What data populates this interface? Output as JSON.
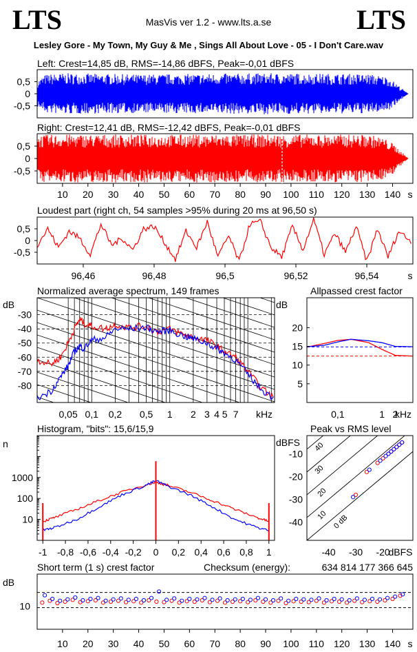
{
  "header": {
    "logo_left": "LTS",
    "logo_right": "LTS",
    "app_title": "MasVis ver 1.2 - www.lts.a.se",
    "track_title": "Lesley Gore - My Town, My Guy & Me , Sings All About Love - 05 - I Don't Care.wav"
  },
  "colors": {
    "left": "#0000ff",
    "right": "#ff0000",
    "axis": "#000000"
  },
  "chart_data": [
    {
      "type": "area",
      "title": "Left: Crest=14,85 dB, RMS=-14,86 dBFS, Peak=-0,01 dBFS",
      "yticks": [
        "0,5",
        "0",
        "-0,5"
      ],
      "ylim": [
        -1,
        1
      ],
      "xlim": [
        0,
        148
      ],
      "duration_s": 146,
      "series": [
        {
          "color": "blue",
          "envelope": [
            [
              0,
              0.55
            ],
            [
              3,
              0.8
            ],
            [
              10,
              0.85
            ],
            [
              40,
              0.8
            ],
            [
              90,
              0.85
            ],
            [
              130,
              0.82
            ],
            [
              138,
              0.7
            ],
            [
              142,
              0.35
            ],
            [
              145,
              0.08
            ],
            [
              146,
              0.0
            ]
          ]
        }
      ]
    },
    {
      "type": "area",
      "title": "Right: Crest=12,41 dB, RMS=-12,42 dBFS, Peak=-0,01 dBFS",
      "yticks": [
        "0,5",
        "0",
        "-0,5"
      ],
      "ylim": [
        -1,
        1
      ],
      "xlim": [
        0,
        148
      ],
      "duration_s": 146,
      "marker_s": 96.5,
      "xticks": [
        "10",
        "20",
        "30",
        "40",
        "50",
        "60",
        "70",
        "80",
        "90",
        "100",
        "110",
        "120",
        "130",
        "140",
        "s"
      ],
      "series": [
        {
          "color": "red",
          "envelope": [
            [
              0,
              0.95
            ],
            [
              10,
              0.97
            ],
            [
              130,
              0.97
            ],
            [
              136,
              0.85
            ],
            [
              140,
              0.6
            ],
            [
              143,
              0.3
            ],
            [
              145,
              0.1
            ],
            [
              146,
              0.0
            ]
          ]
        }
      ]
    },
    {
      "type": "line",
      "title": "Loudest part (right ch, 54 samples >95% during 20 ms at 96,50 s)",
      "yticks": [
        "0,5",
        "0",
        "-0,5"
      ],
      "xticks": [
        "96,46",
        "96,48",
        "96,5",
        "96,52",
        "96,54",
        "s"
      ],
      "xlim": [
        96.447,
        96.553
      ],
      "ylim": [
        -1,
        1
      ],
      "series": [
        {
          "color": "red",
          "x": [
            96.447,
            96.45,
            96.453,
            96.456,
            96.459,
            96.462,
            96.465,
            96.468,
            96.471,
            96.474,
            96.477,
            96.48,
            96.483,
            96.486,
            96.489,
            96.492,
            96.495,
            96.498,
            96.501,
            96.504,
            96.507,
            96.51,
            96.513,
            96.516,
            96.519,
            96.522,
            96.525,
            96.528,
            96.531,
            96.534,
            96.537,
            96.54,
            96.543,
            96.546,
            96.549,
            96.553
          ],
          "y": [
            -0.2,
            0.5,
            -0.3,
            0.4,
            0.1,
            -0.6,
            0.7,
            -0.2,
            0.1,
            -0.4,
            0.5,
            0.6,
            -0.1,
            -0.8,
            0.4,
            -0.3,
            0.8,
            -0.7,
            0.2,
            -0.9,
            0.7,
            0.8,
            -0.3,
            -0.7,
            0.6,
            -0.4,
            0.9,
            -0.6,
            0.3,
            -0.5,
            0.6,
            -0.9,
            0.5,
            -0.7,
            0.4,
            -0.1
          ]
        }
      ]
    },
    {
      "type": "line",
      "title": "Normalized average spectrum, 149 frames",
      "ylabel": "dB",
      "yticks": [
        "-30",
        "-40",
        "-50",
        "-60",
        "-70",
        "-80"
      ],
      "xticks": [
        "0,05",
        "0,1",
        "0,2",
        "0,5",
        "1",
        "2",
        "3",
        "4 5",
        "7",
        "kHz"
      ],
      "xlim": [
        0.02,
        22
      ],
      "ylim": [
        -92,
        -18
      ],
      "series": [
        {
          "name": "right",
          "color": "red",
          "x": [
            0.02,
            0.03,
            0.04,
            0.05,
            0.06,
            0.07,
            0.08,
            0.1,
            0.15,
            0.2,
            0.3,
            0.5,
            0.7,
            1,
            1.5,
            2,
            3,
            4,
            5,
            7,
            10,
            15,
            22
          ],
          "y": [
            -62,
            -65,
            -60,
            -50,
            -40,
            -33,
            -36,
            -38,
            -40,
            -37,
            -39,
            -38,
            -42,
            -40,
            -44,
            -46,
            -48,
            -52,
            -56,
            -60,
            -70,
            -82,
            -89
          ]
        },
        {
          "name": "left",
          "color": "blue",
          "x": [
            0.02,
            0.03,
            0.04,
            0.05,
            0.06,
            0.07,
            0.08,
            0.1,
            0.15,
            0.2,
            0.3,
            0.5,
            0.7,
            1,
            1.5,
            2,
            3,
            4,
            5,
            7,
            10,
            15,
            22
          ],
          "y": [
            -89,
            -84,
            -74,
            -66,
            -56,
            -52,
            -54,
            -48,
            -46,
            -40,
            -40,
            -39,
            -42,
            -41,
            -45,
            -47,
            -50,
            -54,
            -57,
            -62,
            -72,
            -83,
            -89
          ]
        }
      ]
    },
    {
      "type": "line",
      "title": "Allpassed crest factor",
      "ylabel": "dB",
      "yticks": [
        "20",
        "15",
        "10",
        "5"
      ],
      "xticks": [
        "0,1",
        "1",
        "2",
        "kHz"
      ],
      "xlim": [
        0.02,
        5
      ],
      "ylim": [
        0,
        28
      ],
      "series": [
        {
          "name": "right",
          "color": "red",
          "x": [
            0.02,
            0.05,
            0.1,
            0.2,
            0.5,
            1,
            2,
            5
          ],
          "y": [
            14.8,
            15.8,
            16.6,
            16.9,
            16.0,
            14.2,
            12.6,
            12.4
          ]
        },
        {
          "name": "left",
          "color": "blue",
          "x": [
            0.02,
            0.05,
            0.1,
            0.2,
            0.5,
            1,
            2,
            5
          ],
          "y": [
            14.9,
            15.3,
            16.2,
            16.9,
            16.5,
            16.0,
            15.0,
            14.9
          ]
        }
      ],
      "reference_lines": [
        {
          "color": "blue",
          "y": 14.85
        },
        {
          "color": "red",
          "y": 12.41
        }
      ]
    },
    {
      "type": "line",
      "title": "Histogram, \"bits\": 15,6/15,9",
      "ylabel": "n",
      "yticks": [
        "1000",
        "100",
        "10"
      ],
      "xticks": [
        "-1",
        "-0,8",
        "-0,6",
        "-0,4",
        "-0,2",
        "0",
        "0,2",
        "0,4",
        "0,6",
        "0,8",
        "1"
      ],
      "xlim": [
        -1.05,
        1.05
      ],
      "ylim": [
        1,
        100000
      ],
      "series": [
        {
          "name": "right",
          "color": "red",
          "x": [
            -1,
            -0.9,
            -0.7,
            -0.5,
            -0.3,
            -0.1,
            0,
            0.1,
            0.3,
            0.5,
            0.7,
            0.9,
            1
          ],
          "y": [
            8,
            12,
            30,
            80,
            200,
            430,
            600,
            430,
            200,
            80,
            30,
            12,
            8
          ]
        },
        {
          "name": "left",
          "color": "blue",
          "x": [
            -1,
            -0.9,
            -0.7,
            -0.5,
            -0.3,
            -0.1,
            0,
            0.1,
            0.3,
            0.5,
            0.7,
            0.9,
            1
          ],
          "y": [
            3,
            4,
            10,
            40,
            150,
            400,
            700,
            400,
            150,
            40,
            10,
            4,
            3
          ]
        }
      ]
    },
    {
      "type": "scatter",
      "title": "Peak vs RMS level",
      "ylabel": "dBFS",
      "xlabel": "dBFS",
      "yticks": [
        "-10",
        "-20",
        "-30",
        "-40"
      ],
      "xticks": [
        "-40",
        "-30",
        "-20",
        "dBFS"
      ],
      "diagonal_labels": [
        "40",
        "30",
        "20",
        "10",
        "0 dB"
      ],
      "xlim": [
        -48,
        -9
      ],
      "ylim": [
        -48,
        -2
      ],
      "series": [
        {
          "name": "right",
          "color": "red",
          "x": [
            -30,
            -26,
            -22,
            -20,
            -18,
            -17,
            -16,
            -15,
            -14,
            -13
          ],
          "y": [
            -28,
            -18,
            -14,
            -12,
            -10,
            -9,
            -8,
            -7,
            -6,
            -5
          ]
        },
        {
          "name": "left",
          "color": "blue",
          "x": [
            -31,
            -25,
            -21,
            -19,
            -18,
            -17,
            -16,
            -15,
            -14,
            -13
          ],
          "y": [
            -29,
            -17,
            -13,
            -11,
            -10,
            -9,
            -8,
            -7,
            -6,
            -5
          ]
        }
      ]
    },
    {
      "type": "scatter",
      "title": "Short term (1 s) crest factor",
      "ylabel": "dB",
      "yticks": [
        "10"
      ],
      "xticks": [
        "10",
        "20",
        "30",
        "40",
        "50",
        "60",
        "70",
        "80",
        "90",
        "100",
        "110",
        "120",
        "130",
        "140",
        "s"
      ],
      "xlim": [
        0,
        148
      ],
      "ylim": [
        5,
        17
      ],
      "series": [
        {
          "name": "right",
          "color": "red",
          "x": [
            2,
            5,
            8,
            11,
            14,
            17,
            20,
            23,
            26,
            29,
            32,
            35,
            38,
            41,
            44,
            47,
            50,
            53,
            56,
            59,
            62,
            65,
            68,
            71,
            74,
            77,
            80,
            83,
            86,
            89,
            92,
            95,
            98,
            101,
            104,
            107,
            110,
            113,
            116,
            119,
            122,
            125,
            128,
            131,
            134,
            137,
            140,
            143
          ],
          "y": [
            10.8,
            11.2,
            10.7,
            11.0,
            11.4,
            10.9,
            11.1,
            11.3,
            10.8,
            11.0,
            11.2,
            10.9,
            11.1,
            10.8,
            11.3,
            11.0,
            10.9,
            11.2,
            10.8,
            11.1,
            11.0,
            11.3,
            10.9,
            11.2,
            10.8,
            11.0,
            11.1,
            10.9,
            11.3,
            11.0,
            10.8,
            11.2,
            10.7,
            11.1,
            11.0,
            10.9,
            11.2,
            10.8,
            11.1,
            11.0,
            10.8,
            11.2,
            10.9,
            11.1,
            11.0,
            11.3,
            11.6,
            12.3
          ]
        },
        {
          "name": "left",
          "color": "blue",
          "x": [
            3,
            6,
            9,
            12,
            15,
            18,
            21,
            24,
            27,
            30,
            33,
            36,
            39,
            42,
            45,
            48,
            51,
            54,
            57,
            60,
            63,
            66,
            69,
            72,
            75,
            78,
            81,
            84,
            87,
            90,
            93,
            96,
            99,
            102,
            105,
            108,
            111,
            114,
            117,
            120,
            123,
            126,
            129,
            132,
            135,
            138,
            141,
            144
          ],
          "y": [
            12.4,
            11.6,
            11.2,
            11.5,
            11.9,
            11.3,
            11.6,
            11.8,
            11.2,
            11.5,
            11.7,
            11.4,
            11.6,
            11.3,
            11.8,
            13.2,
            11.4,
            11.7,
            11.2,
            11.6,
            11.5,
            11.8,
            11.4,
            11.7,
            11.3,
            11.5,
            11.6,
            11.4,
            11.8,
            11.5,
            11.3,
            11.7,
            11.2,
            11.6,
            11.5,
            11.4,
            11.7,
            11.3,
            11.6,
            11.5,
            11.3,
            11.7,
            11.4,
            11.6,
            11.5,
            11.8,
            12.1,
            12.6
          ]
        }
      ],
      "reference_lines": [
        {
          "y": 13.0
        },
        {
          "y": 9.7
        }
      ]
    }
  ],
  "checksum": {
    "label": "Checksum (energy):",
    "value": "634 814 177 366 645"
  }
}
